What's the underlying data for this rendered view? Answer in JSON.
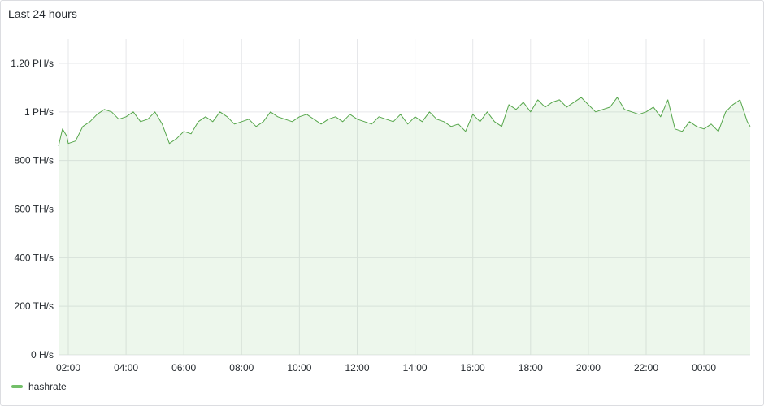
{
  "panel": {
    "title": "Last 24 hours"
  },
  "colors": {
    "series_line": "#56a64b",
    "series_fill": "#73bf69",
    "grid": "#e6e7ea"
  },
  "chart_data": {
    "type": "area",
    "title": "Last 24 hours",
    "xlabel": "",
    "ylabel": "",
    "x_ticks": [
      "02:00",
      "04:00",
      "06:00",
      "08:00",
      "10:00",
      "12:00",
      "14:00",
      "16:00",
      "18:00",
      "20:00",
      "22:00",
      "00:00"
    ],
    "y_ticks": [
      "0 H/s",
      "200 TH/s",
      "400 TH/s",
      "600 TH/s",
      "800 TH/s",
      "1 PH/s",
      "1.20 PH/s"
    ],
    "ylim_ths": [
      0,
      1200
    ],
    "xlim_hours_after_0200": [
      -0.35,
      23.6
    ],
    "grid": true,
    "legend": "bottom-left",
    "series": [
      {
        "name": "hashrate",
        "unit": "TH/s",
        "x_hours_after_0200": [
          -0.35,
          -0.2,
          -0.05,
          0.0,
          0.25,
          0.5,
          0.75,
          1.0,
          1.25,
          1.5,
          1.75,
          2.0,
          2.25,
          2.5,
          2.75,
          3.0,
          3.25,
          3.5,
          3.75,
          4.0,
          4.25,
          4.5,
          4.75,
          5.0,
          5.25,
          5.5,
          5.75,
          6.0,
          6.25,
          6.5,
          6.75,
          7.0,
          7.25,
          7.5,
          7.75,
          8.0,
          8.25,
          8.5,
          8.75,
          9.0,
          9.25,
          9.5,
          9.75,
          10.0,
          10.25,
          10.5,
          10.75,
          11.0,
          11.25,
          11.5,
          11.75,
          12.0,
          12.25,
          12.5,
          12.75,
          13.0,
          13.25,
          13.5,
          13.75,
          14.0,
          14.25,
          14.5,
          14.75,
          15.0,
          15.25,
          15.5,
          15.75,
          16.0,
          16.25,
          16.5,
          16.75,
          17.0,
          17.25,
          17.5,
          17.75,
          18.0,
          18.25,
          18.5,
          18.75,
          19.0,
          19.25,
          19.5,
          19.75,
          20.0,
          20.25,
          20.5,
          20.75,
          21.0,
          21.25,
          21.5,
          21.75,
          22.0,
          22.25,
          22.5,
          22.75,
          23.0,
          23.25,
          23.5,
          23.6
        ],
        "values": [
          860,
          930,
          900,
          870,
          880,
          940,
          960,
          990,
          1010,
          1000,
          970,
          980,
          1000,
          960,
          970,
          1000,
          950,
          870,
          890,
          920,
          910,
          960,
          980,
          960,
          1000,
          980,
          950,
          960,
          970,
          940,
          960,
          1000,
          980,
          970,
          960,
          980,
          990,
          970,
          950,
          970,
          980,
          960,
          990,
          970,
          960,
          950,
          980,
          970,
          960,
          990,
          950,
          980,
          960,
          1000,
          970,
          960,
          940,
          950,
          920,
          990,
          960,
          1000,
          960,
          940,
          1030,
          1010,
          1040,
          1000,
          1050,
          1020,
          1040,
          1050,
          1020,
          1040,
          1060,
          1030,
          1000,
          1010,
          1020,
          1060,
          1010,
          1000,
          990,
          1000,
          1020,
          980,
          1050,
          930,
          920,
          960,
          940,
          930,
          950,
          920,
          1000,
          1030,
          1050,
          960,
          940
        ]
      }
    ]
  }
}
